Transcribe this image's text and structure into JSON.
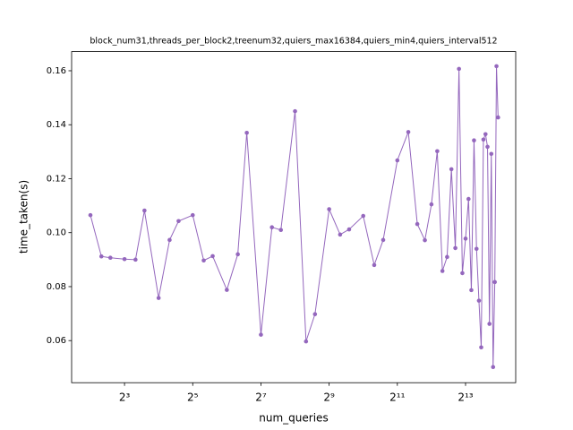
{
  "chart_data": {
    "type": "line",
    "title": "block_num31,threads_per_block2,treenum32,quiers_max16384,quiers_min4,quiers_interval512",
    "x_label": "num_queries",
    "y_label": "time_taken(s)",
    "x_scale": "log2",
    "x": [
      4,
      5,
      6,
      8,
      10,
      12,
      16,
      20,
      24,
      32,
      40,
      48,
      64,
      80,
      96,
      128,
      160,
      192,
      256,
      320,
      384,
      512,
      640,
      768,
      1024,
      1280,
      1536,
      2048,
      2560,
      3072,
      3584,
      4096,
      4608,
      5120,
      5632,
      6144,
      6656,
      7168,
      7680,
      8192,
      8704,
      9216,
      9728,
      10240,
      10752,
      11264,
      11776,
      12288,
      12800,
      13312,
      13824,
      14336,
      14848,
      15360,
      15872
    ],
    "series": [
      {
        "name": "time_taken",
        "color": "#9467bd",
        "values": [
          0.1065,
          0.0912,
          0.0907,
          0.0902,
          0.09,
          0.1082,
          0.0758,
          0.0973,
          0.1043,
          0.1065,
          0.0897,
          0.0913,
          0.0788,
          0.092,
          0.137,
          0.0622,
          0.102,
          0.101,
          0.145,
          0.0597,
          0.0698,
          0.1087,
          0.0993,
          0.1012,
          0.1062,
          0.088,
          0.0973,
          0.1268,
          0.1373,
          0.1032,
          0.0972,
          0.1105,
          0.1302,
          0.0858,
          0.091,
          0.1235,
          0.0943,
          0.1607,
          0.085,
          0.0978,
          0.1125,
          0.0787,
          0.1342,
          0.094,
          0.0748,
          0.0575,
          0.1345,
          0.1365,
          0.1318,
          0.0662,
          0.1292,
          0.0502,
          0.0817,
          0.1617,
          0.1427
        ]
      }
    ],
    "xlim": [
      2.73,
      22700
    ],
    "xticks": [
      {
        "value": 8,
        "label": "2³"
      },
      {
        "value": 32,
        "label": "2⁵"
      },
      {
        "value": 128,
        "label": "2⁷"
      },
      {
        "value": 512,
        "label": "2⁹"
      },
      {
        "value": 2048,
        "label": "2¹¹"
      },
      {
        "value": 8192,
        "label": "2¹³"
      }
    ],
    "ylim": [
      0.0444,
      0.1671
    ],
    "yticks": [
      {
        "value": 0.06,
        "label": "0.06"
      },
      {
        "value": 0.08,
        "label": "0.08"
      },
      {
        "value": 0.1,
        "label": "0.10"
      },
      {
        "value": 0.12,
        "label": "0.12"
      },
      {
        "value": 0.14,
        "label": "0.14"
      },
      {
        "value": 0.16,
        "label": "0.16"
      }
    ],
    "grid": false
  }
}
